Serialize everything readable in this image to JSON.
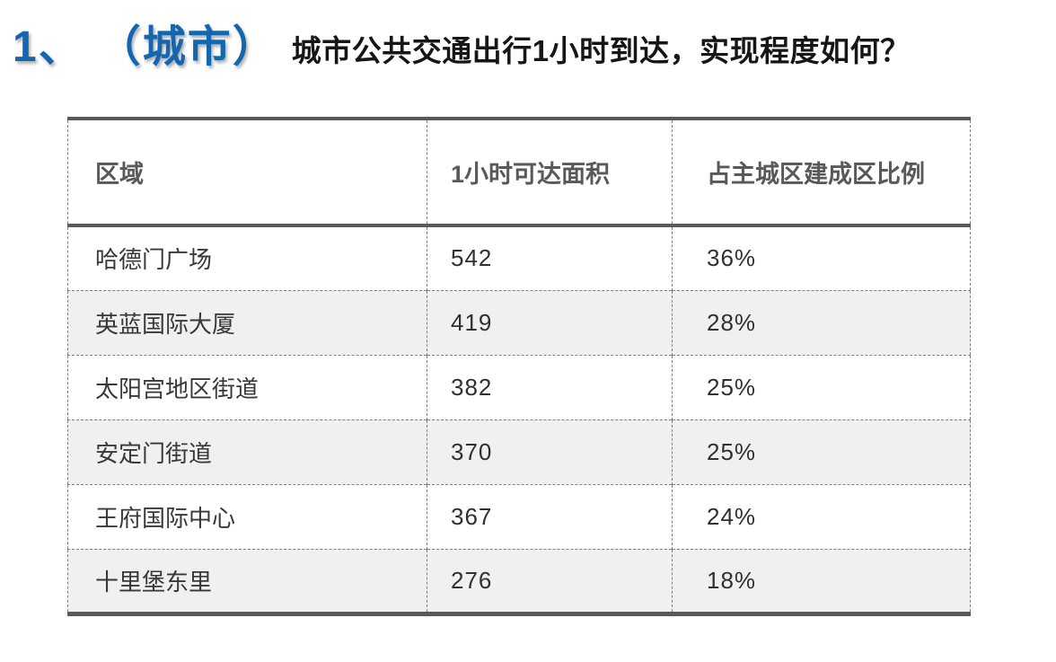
{
  "title": {
    "number": "1、",
    "tag": "（城市）",
    "question": "城市公共交通出行1小时到达，实现程度如何？"
  },
  "colors": {
    "accent_blue": "#1467ae",
    "title_text": "#161616",
    "table_border_dark": "#595959",
    "table_border_dashed": "#7f7f7f",
    "header_text": "#595959",
    "cell_text": "#383838",
    "zebra_row_bg": "#f0f0f0"
  },
  "table": {
    "headers": [
      "区域",
      "1小时可达面积",
      "占主城区建成区比例"
    ],
    "rows": [
      {
        "region": "哈德门广场",
        "area": "542",
        "ratio": "36%"
      },
      {
        "region": "英蓝国际大厦",
        "area": "419",
        "ratio": "28%"
      },
      {
        "region": "太阳宫地区街道",
        "area": "382",
        "ratio": "25%"
      },
      {
        "region": "安定门街道",
        "area": "370",
        "ratio": "25%"
      },
      {
        "region": "王府国际中心",
        "area": "367",
        "ratio": "24%"
      },
      {
        "region": "十里堡东里",
        "area": "276",
        "ratio": "18%"
      }
    ]
  }
}
